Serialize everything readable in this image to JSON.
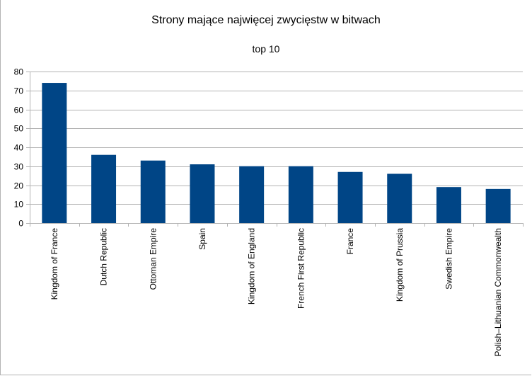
{
  "chart_data": {
    "type": "bar",
    "title": "Strony mające najwięcej zwycięstw w bitwach",
    "subtitle": "top 10",
    "xlabel": "",
    "ylabel": "",
    "categories": [
      "Kingdom of France",
      "Dutch Republic",
      "Ottoman Empire",
      "Spain",
      "Kingdom of England",
      "French First Republic",
      "France",
      "Kingdom of Prussia",
      "Swedish Empire",
      "Polish–Lithuanian Commonwealth"
    ],
    "values": [
      74,
      36,
      33,
      31,
      30,
      30,
      27,
      26,
      19,
      18
    ],
    "ylim": [
      0,
      80
    ],
    "yticks": [
      0,
      10,
      20,
      30,
      40,
      50,
      60,
      70,
      80
    ],
    "grid": true,
    "legend": "none",
    "colors": {
      "bar": "#004586",
      "grid": "#b3b3b3",
      "axis": "#b3b3b3"
    }
  }
}
